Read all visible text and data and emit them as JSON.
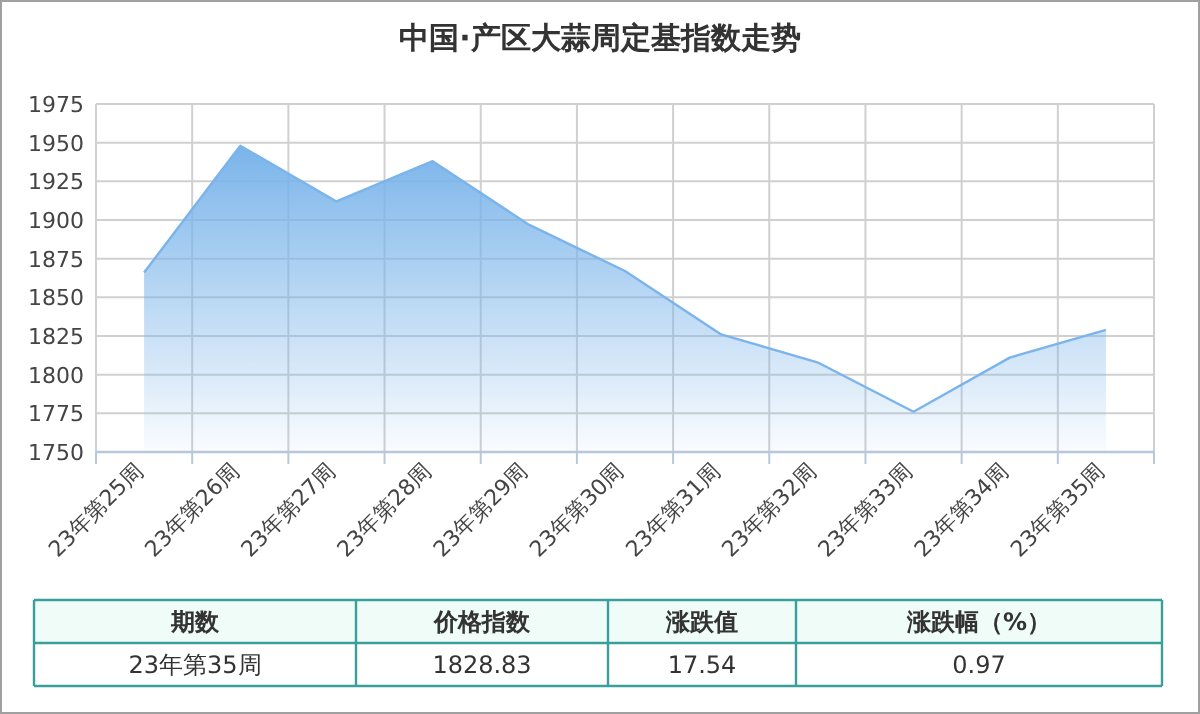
{
  "chart_data": {
    "type": "area",
    "title": "中国·产区大蒜周定基指数走势",
    "categories": [
      "23年第25周",
      "23年第26周",
      "23年第27周",
      "23年第28周",
      "23年第29周",
      "23年第30周",
      "23年第31周",
      "23年第32周",
      "23年第33周",
      "23年第34周",
      "23年第35周"
    ],
    "values": [
      1866,
      1948,
      1912,
      1938,
      1897,
      1867,
      1826,
      1808,
      1776,
      1811,
      1829
    ],
    "color": "#7ab4ea",
    "ylim": [
      1750,
      1975
    ],
    "yticks": [
      1750,
      1775,
      1800,
      1825,
      1850,
      1875,
      1900,
      1925,
      1950,
      1975
    ],
    "grid": true,
    "annotations": [
      "期数",
      "价格指数",
      "涨跌值",
      "涨跌幅（%）",
      "23年第35周",
      "1828.83",
      "17.54",
      "0.97"
    ]
  }
}
